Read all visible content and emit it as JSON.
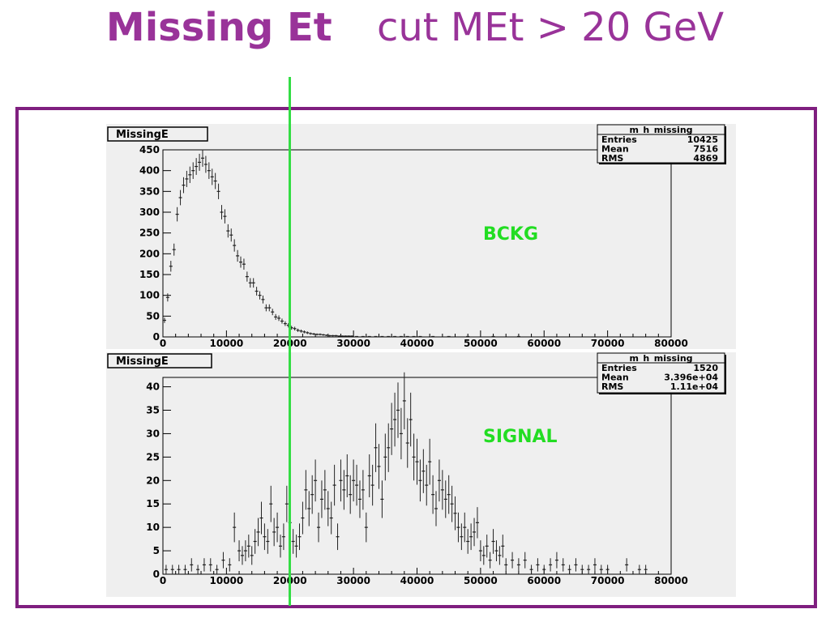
{
  "slide": {
    "title_bold": "Missing Et",
    "title_rest": "cut MEt > 20 GeV"
  },
  "colors": {
    "title": "#993399",
    "frame": "#7f1f7f",
    "cut_line": "#33dd44",
    "label": "#22dd22"
  },
  "chart_data": [
    {
      "type": "scatter",
      "title": "MissingE",
      "label": "BCKG",
      "stats": {
        "name": "m_h_missing",
        "entries_label": "Entries",
        "entries": "10425",
        "mean_label": "Mean",
        "mean": "7516",
        "rms_label": "RMS",
        "rms": "4869"
      },
      "xlim": [
        0,
        80000
      ],
      "ylim": [
        0,
        450
      ],
      "x_ticks": [
        0,
        10000,
        20000,
        30000,
        40000,
        50000,
        60000,
        70000,
        80000
      ],
      "y_ticks": [
        0,
        50,
        100,
        150,
        200,
        250,
        300,
        350,
        400,
        450
      ],
      "x": [
        250,
        750,
        1250,
        1750,
        2250,
        2750,
        3250,
        3750,
        4250,
        4750,
        5250,
        5750,
        6250,
        6750,
        7250,
        7750,
        8250,
        8750,
        9250,
        9750,
        10250,
        10750,
        11250,
        11750,
        12250,
        12750,
        13250,
        13750,
        14250,
        14750,
        15250,
        15750,
        16250,
        16750,
        17250,
        17750,
        18250,
        18750,
        19250,
        19750,
        20250,
        20750,
        21250,
        21750,
        22250,
        22750,
        23250,
        23750,
        24250,
        24750,
        25250,
        25750,
        26250,
        26750,
        27250,
        27750,
        28250,
        28750,
        29250,
        29750,
        30500,
        31500,
        32500,
        33500,
        34500,
        35500,
        36500,
        37500,
        38500,
        39500,
        40500,
        42500,
        45000,
        48000,
        52000,
        56000
      ],
      "y": [
        40,
        95,
        170,
        210,
        295,
        335,
        365,
        380,
        390,
        400,
        410,
        420,
        430,
        415,
        400,
        385,
        375,
        350,
        300,
        290,
        255,
        245,
        220,
        195,
        180,
        175,
        145,
        130,
        130,
        110,
        100,
        90,
        70,
        70,
        60,
        48,
        45,
        38,
        32,
        28,
        22,
        20,
        16,
        14,
        12,
        10,
        8,
        7,
        6,
        6,
        5,
        4,
        3,
        3,
        3,
        2,
        2,
        2,
        2,
        2,
        1,
        1,
        1,
        1,
        1,
        1,
        1,
        1,
        1,
        1,
        1,
        1,
        1,
        1,
        1,
        1
      ]
    },
    {
      "type": "scatter",
      "title": "MissingE",
      "label": "SIGNAL",
      "stats": {
        "name": "m_h_missing",
        "entries_label": "Entries",
        "entries": "1520",
        "mean_label": "Mean",
        "mean": "3.396e+04",
        "rms_label": "RMS",
        "rms": "1.11e+04"
      },
      "xlim": [
        0,
        80000
      ],
      "ylim": [
        0,
        42
      ],
      "x_ticks": [
        0,
        10000,
        20000,
        30000,
        40000,
        50000,
        60000,
        70000,
        80000
      ],
      "y_ticks": [
        0,
        5,
        10,
        15,
        20,
        25,
        30,
        35,
        40
      ],
      "x": [
        500,
        1500,
        2500,
        3500,
        4500,
        5500,
        6500,
        7500,
        8500,
        9500,
        10500,
        11250,
        12000,
        12500,
        13000,
        13500,
        14000,
        14500,
        15000,
        15500,
        16000,
        16500,
        17000,
        17500,
        18000,
        18500,
        19000,
        19500,
        20000,
        20500,
        21000,
        21500,
        22000,
        22500,
        23000,
        23500,
        24000,
        24500,
        25000,
        25500,
        26000,
        26500,
        27000,
        27500,
        28000,
        28500,
        29000,
        29500,
        30000,
        30500,
        31000,
        31500,
        32000,
        32500,
        33000,
        33500,
        34000,
        34500,
        35000,
        35500,
        36000,
        36500,
        37000,
        37500,
        38000,
        38500,
        39000,
        39500,
        40000,
        40500,
        41000,
        41500,
        42000,
        42500,
        43000,
        43500,
        44000,
        44500,
        45000,
        45500,
        46000,
        46500,
        47000,
        47500,
        48000,
        48500,
        49000,
        49500,
        50000,
        50500,
        51000,
        51500,
        52000,
        52500,
        53000,
        53500,
        54000,
        55000,
        56000,
        57000,
        58000,
        59000,
        60000,
        61000,
        62000,
        63000,
        64000,
        65000,
        66000,
        67000,
        68000,
        69000,
        70000,
        73000,
        75000,
        76000
      ],
      "y": [
        1,
        1,
        1,
        1,
        2,
        1,
        2,
        2,
        1,
        3,
        2,
        10,
        5,
        4,
        5,
        6,
        4,
        7,
        9,
        12,
        8,
        7,
        15,
        9,
        10,
        6,
        8,
        15,
        11,
        7,
        6,
        8,
        12,
        18,
        14,
        17,
        20,
        10,
        16,
        18,
        14,
        12,
        19,
        8,
        20,
        18,
        21,
        17,
        20,
        19,
        16,
        18,
        10,
        21,
        19,
        27,
        23,
        16,
        25,
        27,
        31,
        33,
        35,
        30,
        37,
        28,
        33,
        25,
        24,
        20,
        22,
        19,
        24,
        17,
        14,
        20,
        18,
        16,
        17,
        15,
        13,
        10,
        8,
        10,
        7,
        8,
        9,
        11,
        5,
        4,
        6,
        3,
        7,
        5,
        4,
        6,
        2,
        3,
        2,
        3,
        1,
        2,
        1,
        2,
        3,
        2,
        1,
        2,
        1,
        1,
        2,
        1,
        1,
        2,
        1,
        1
      ]
    }
  ]
}
